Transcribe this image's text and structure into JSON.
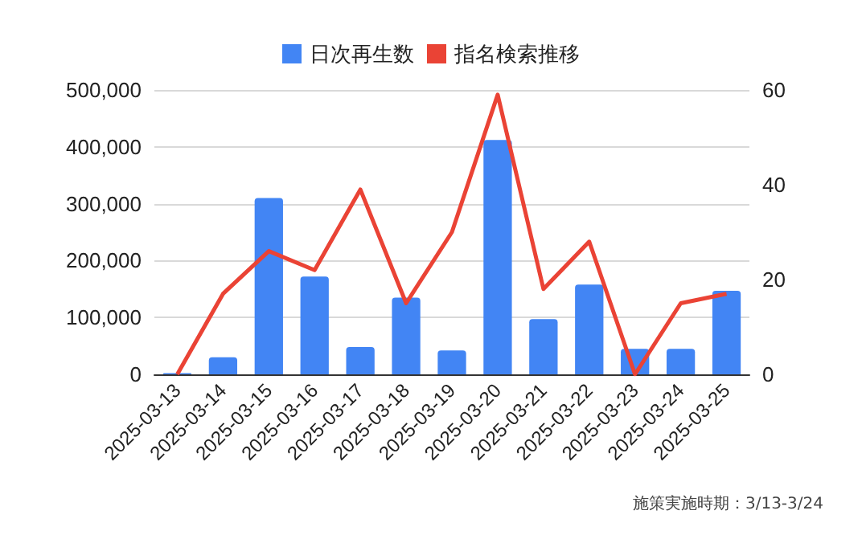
{
  "chart_data": {
    "type": "bar",
    "categories": [
      "2025-03-13",
      "2025-03-14",
      "2025-03-15",
      "2025-03-16",
      "2025-03-17",
      "2025-03-18",
      "2025-03-19",
      "2025-03-20",
      "2025-03-21",
      "2025-03-22",
      "2025-03-23",
      "2025-03-24",
      "2025-03-25"
    ],
    "series": [
      {
        "name": "日次再生数",
        "color": "#4285f4",
        "values": [
          2000,
          30000,
          310000,
          172000,
          48000,
          135000,
          42000,
          412000,
          97000,
          158000,
          45000,
          45000,
          147000
        ]
      },
      {
        "name": "指名検索推移",
        "color": "#ea4335",
        "type": "line",
        "axis": "y2",
        "values": [
          0,
          17,
          26,
          22,
          39,
          15,
          30,
          59,
          18,
          28,
          0,
          15,
          17
        ]
      }
    ],
    "ylim": [
      0,
      500000
    ],
    "yticks": [
      0,
      {
        "value": 100000,
        "label": "100,000"
      },
      {
        "value": 200000,
        "label": "200,000"
      },
      {
        "value": 300000,
        "label": "300,000"
      },
      {
        "value": 400000,
        "label": "400,000"
      },
      {
        "value": 500000,
        "label": "500,000"
      }
    ],
    "y2lim": [
      0,
      60
    ],
    "y2ticks": [
      0,
      20,
      40,
      60
    ],
    "grid": "y",
    "legend": "top",
    "marker": "none",
    "annotations": [
      "施策実施時期：3/13-3/24"
    ]
  }
}
